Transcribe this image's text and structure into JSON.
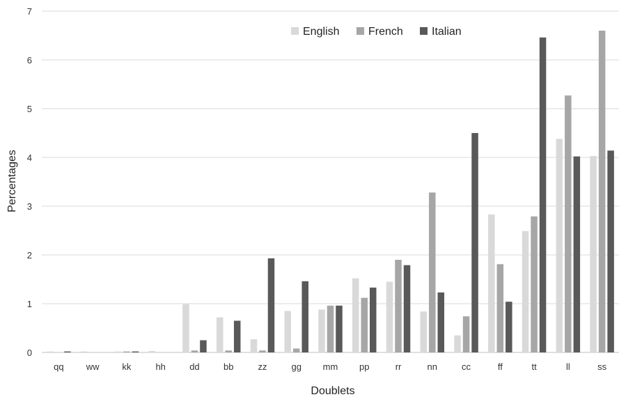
{
  "chart_data": {
    "type": "bar",
    "title": "",
    "xlabel": "Doublets",
    "ylabel": "Percentages",
    "ylim": [
      0,
      7
    ],
    "yticks": [
      0,
      1,
      2,
      3,
      4,
      5,
      6,
      7
    ],
    "grid": true,
    "legend_position": "top-right",
    "categories": [
      "qq",
      "ww",
      "kk",
      "hh",
      "dd",
      "bb",
      "zz",
      "gg",
      "mm",
      "pp",
      "rr",
      "nn",
      "cc",
      "ff",
      "tt",
      "ll",
      "ss"
    ],
    "series": [
      {
        "name": "English",
        "color": "#d9d9d9",
        "values": [
          0.02,
          0.02,
          0.02,
          0.03,
          0.99,
          0.72,
          0.27,
          0.85,
          0.88,
          1.52,
          1.45,
          0.84,
          0.35,
          2.83,
          2.49,
          4.38,
          4.03
        ]
      },
      {
        "name": "French",
        "color": "#a6a6a6",
        "values": [
          0.0,
          0.0,
          0.02,
          0.0,
          0.04,
          0.04,
          0.04,
          0.08,
          0.96,
          1.12,
          1.9,
          3.28,
          0.74,
          1.81,
          2.79,
          5.27,
          6.6
        ]
      },
      {
        "name": "Italian",
        "color": "#595959",
        "values": [
          0.02,
          0.0,
          0.02,
          0.0,
          0.25,
          0.65,
          1.93,
          1.46,
          0.96,
          1.33,
          1.79,
          1.23,
          4.5,
          1.04,
          6.46,
          4.02,
          4.14
        ]
      }
    ]
  }
}
